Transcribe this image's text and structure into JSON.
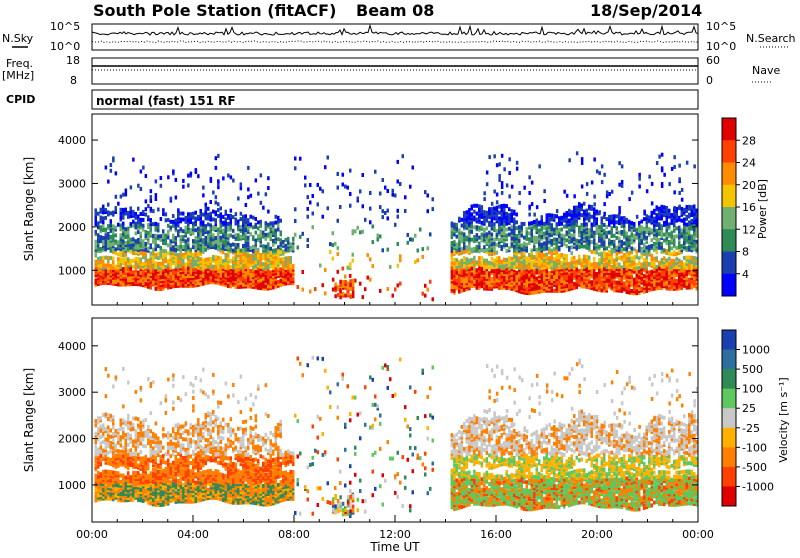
{
  "header": {
    "title": "South Pole Station (fitACF)",
    "beam": "Beam 08",
    "date": "18/Sep/2014"
  },
  "top_panels": {
    "nsky_label": "N.Sky",
    "nsky_tick_top": "10^5",
    "nsky_tick_bottom": "10^0",
    "nsearch_label": "N.Search",
    "nsearch_tick_top": "10^5",
    "nsearch_tick_bottom": "10^0",
    "freq_label_line1": "Freq.",
    "freq_label_line2": "[MHz]",
    "freq_tick_top": "18",
    "freq_tick_bottom": "8",
    "nave_label": "Nave",
    "nave_tick_top": "60",
    "nave_tick_bottom": "0",
    "cpid_label": "CPID",
    "cpid_text": "normal (fast) 151 RF"
  },
  "chart_data": [
    {
      "type": "heatmap",
      "name": "power",
      "ylabel": "Slant Range [km]",
      "yticks": [
        1000,
        2000,
        3000,
        4000
      ],
      "ylim": [
        200,
        4600
      ],
      "xlim": [
        0,
        24
      ],
      "colorbar": {
        "label": "Power [dB]",
        "ticks": [
          "28",
          "24",
          "20",
          "16",
          "12",
          "8",
          "4"
        ],
        "colors": [
          "#e00000",
          "#ff4000",
          "#ff8c00",
          "#f5c400",
          "#70b070",
          "#2e8b57",
          "#1a3fb0",
          "#0000ff"
        ]
      }
    },
    {
      "type": "heatmap",
      "name": "velocity",
      "ylabel": "Slant Range [km]",
      "yticks": [
        1000,
        2000,
        3000,
        4000
      ],
      "ylim": [
        200,
        4600
      ],
      "xlim": [
        0,
        24
      ],
      "xlabel": "Time UT",
      "xticks": [
        "00:00",
        "04:00",
        "08:00",
        "12:00",
        "16:00",
        "20:00",
        "00:00"
      ],
      "colorbar": {
        "label": "Velocity [m s⁻¹]",
        "ticks": [
          "1000",
          "500",
          "100",
          "25",
          "-25",
          "-100",
          "-500",
          "-1000"
        ],
        "colors": [
          "#1a3fb0",
          "#2e6fa0",
          "#2e8b57",
          "#5ec85e",
          "#c8c8c8",
          "#ffb000",
          "#ff8000",
          "#ff4000",
          "#e00000"
        ]
      }
    }
  ]
}
